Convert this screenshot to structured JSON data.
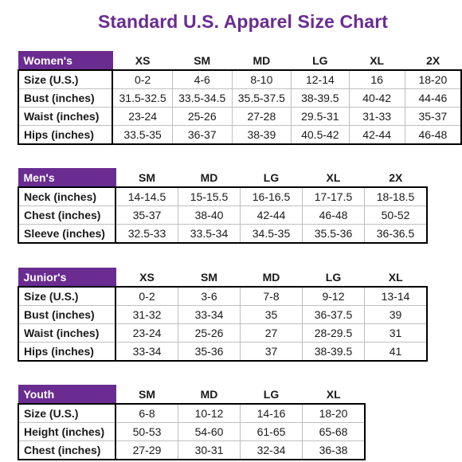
{
  "title": "Standard U.S. Apparel Size Chart",
  "colors": {
    "accent": "#6a2c91",
    "header_text": "#ffffff"
  },
  "womens": {
    "name": "Women's",
    "sizes": [
      "XS",
      "SM",
      "MD",
      "LG",
      "XL",
      "2X"
    ],
    "rows": [
      {
        "label": "Size (U.S.)",
        "values": [
          "0-2",
          "4-6",
          "8-10",
          "12-14",
          "16",
          "18-20"
        ]
      },
      {
        "label": "Bust (inches)",
        "values": [
          "31.5-32.5",
          "33.5-34.5",
          "35.5-37.5",
          "38-39.5",
          "40-42",
          "44-46"
        ]
      },
      {
        "label": "Waist (inches)",
        "values": [
          "23-24",
          "25-26",
          "27-28",
          "29.5-31",
          "31-33",
          "35-37"
        ]
      },
      {
        "label": "Hips (inches)",
        "values": [
          "33.5-35",
          "36-37",
          "38-39",
          "40.5-42",
          "42-44",
          "46-48"
        ]
      }
    ]
  },
  "mens": {
    "name": "Men's",
    "sizes": [
      "SM",
      "MD",
      "LG",
      "XL",
      "2X"
    ],
    "rows": [
      {
        "label": "Neck (inches)",
        "values": [
          "14-14.5",
          "15-15.5",
          "16-16.5",
          "17-17.5",
          "18-18.5"
        ]
      },
      {
        "label": "Chest (inches)",
        "values": [
          "35-37",
          "38-40",
          "42-44",
          "46-48",
          "50-52"
        ]
      },
      {
        "label": "Sleeve (inches)",
        "values": [
          "32.5-33",
          "33.5-34",
          "34.5-35",
          "35.5-36",
          "36-36.5"
        ]
      }
    ]
  },
  "juniors": {
    "name": "Junior's",
    "sizes": [
      "XS",
      "SM",
      "MD",
      "LG",
      "XL"
    ],
    "rows": [
      {
        "label": "Size (U.S.)",
        "values": [
          "0-2",
          "3-6",
          "7-8",
          "9-12",
          "13-14"
        ]
      },
      {
        "label": "Bust (inches)",
        "values": [
          "31-32",
          "33-34",
          "35",
          "36-37.5",
          "39"
        ]
      },
      {
        "label": "Waist (inches)",
        "values": [
          "23-24",
          "25-26",
          "27",
          "28-29.5",
          "31"
        ]
      },
      {
        "label": "Hips (inches)",
        "values": [
          "33-34",
          "35-36",
          "37",
          "38-39.5",
          "41"
        ]
      }
    ]
  },
  "youth": {
    "name": "Youth",
    "sizes": [
      "SM",
      "MD",
      "LG",
      "XL"
    ],
    "rows": [
      {
        "label": "Size (U.S.)",
        "values": [
          "6-8",
          "10-12",
          "14-16",
          "18-20"
        ]
      },
      {
        "label": "Height (inches)",
        "values": [
          "50-53",
          "54-60",
          "61-65",
          "65-68"
        ]
      },
      {
        "label": "Chest (inches)",
        "values": [
          "27-29",
          "30-31",
          "32-34",
          "36-38"
        ]
      }
    ]
  }
}
